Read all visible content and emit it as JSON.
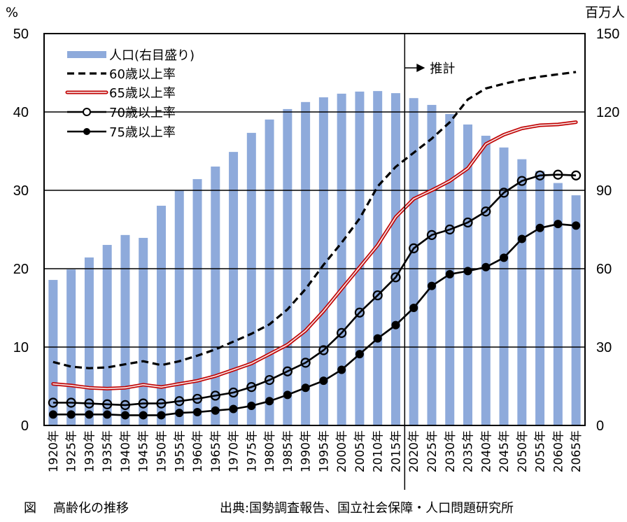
{
  "caption": {
    "figure_label": "図",
    "figure_title": "高齢化の推移",
    "source": "出典:国勢調査報告、国立社会保障・人口問題研究所"
  },
  "chart_data": {
    "type": "bar+line",
    "title": "高齢化の推移",
    "left_axis": {
      "unit_label": "%",
      "range": [
        0,
        50
      ],
      "ticks": [
        "0",
        "10",
        "20",
        "30",
        "40",
        "50"
      ]
    },
    "right_axis": {
      "unit_label": "百万人",
      "range": [
        0,
        150
      ],
      "ticks": [
        "0",
        "30",
        "60",
        "90",
        "120",
        "150"
      ]
    },
    "categories": [
      "1920年",
      "1925年",
      "1930年",
      "1935年",
      "1940年",
      "1945年",
      "1950年",
      "1955年",
      "1960年",
      "1965年",
      "1970年",
      "1975年",
      "1980年",
      "1985年",
      "1990年",
      "1995年",
      "2000年",
      "2005年",
      "2010年",
      "2015年",
      "2020年",
      "2025年",
      "2030年",
      "2035年",
      "2040年",
      "2045年",
      "2050年",
      "2055年",
      "2060年",
      "2065年"
    ],
    "grid": "horizontal",
    "legend_position": "top-left",
    "annotation": {
      "text": "推計",
      "after_category": "2015年"
    },
    "series": [
      {
        "name": "人口(右目盛り)",
        "type": "bar",
        "axis": "right",
        "color": "#8eaadb",
        "values": [
          55.7,
          59.7,
          64.3,
          69.1,
          72.9,
          71.8,
          84.1,
          90.0,
          94.3,
          99.1,
          104.7,
          112.0,
          117.1,
          121.1,
          123.8,
          125.6,
          127.0,
          127.8,
          128.0,
          127.2,
          125.3,
          122.7,
          119.2,
          115.2,
          110.9,
          106.4,
          101.9,
          97.4,
          92.8,
          88.1
        ]
      },
      {
        "name": "60歳以上率",
        "type": "line",
        "style": "dashed",
        "axis": "left",
        "color": "#000000",
        "values": [
          8.1,
          7.5,
          7.3,
          7.4,
          7.8,
          8.2,
          7.7,
          8.2,
          8.9,
          9.7,
          10.7,
          11.7,
          12.9,
          14.8,
          17.4,
          20.5,
          23.3,
          26.4,
          30.5,
          33.0,
          34.8,
          36.6,
          38.7,
          41.6,
          43.0,
          43.6,
          44.1,
          44.5,
          44.8,
          45.1
        ]
      },
      {
        "name": "65歳以上率",
        "type": "line",
        "style": "double-red",
        "axis": "left",
        "color": "#c00000",
        "values": [
          5.3,
          5.1,
          4.8,
          4.7,
          4.8,
          5.2,
          4.9,
          5.3,
          5.7,
          6.3,
          7.1,
          7.9,
          9.1,
          10.3,
          12.1,
          14.6,
          17.4,
          20.2,
          23.0,
          26.6,
          28.9,
          30.0,
          31.2,
          32.8,
          35.9,
          37.1,
          37.9,
          38.3,
          38.4,
          38.7
        ]
      },
      {
        "name": "70歳以上率",
        "type": "line",
        "marker": "open-circle",
        "axis": "left",
        "color": "#000000",
        "values": [
          2.9,
          2.9,
          2.8,
          2.7,
          2.6,
          2.8,
          2.8,
          3.1,
          3.4,
          3.8,
          4.2,
          4.9,
          5.8,
          6.9,
          8.0,
          9.6,
          11.8,
          14.4,
          16.6,
          18.9,
          22.6,
          24.3,
          25.0,
          25.9,
          27.3,
          29.7,
          31.2,
          31.9,
          32.0,
          31.9
        ]
      },
      {
        "name": "75歳以上率",
        "type": "line",
        "marker": "filled-circle",
        "axis": "left",
        "color": "#000000",
        "values": [
          1.4,
          1.4,
          1.4,
          1.4,
          1.3,
          1.3,
          1.3,
          1.6,
          1.7,
          1.9,
          2.1,
          2.5,
          3.1,
          3.9,
          4.8,
          5.7,
          7.1,
          9.1,
          11.1,
          12.8,
          15.0,
          17.8,
          19.3,
          19.7,
          20.2,
          21.4,
          23.8,
          25.2,
          25.7,
          25.5
        ]
      }
    ]
  }
}
